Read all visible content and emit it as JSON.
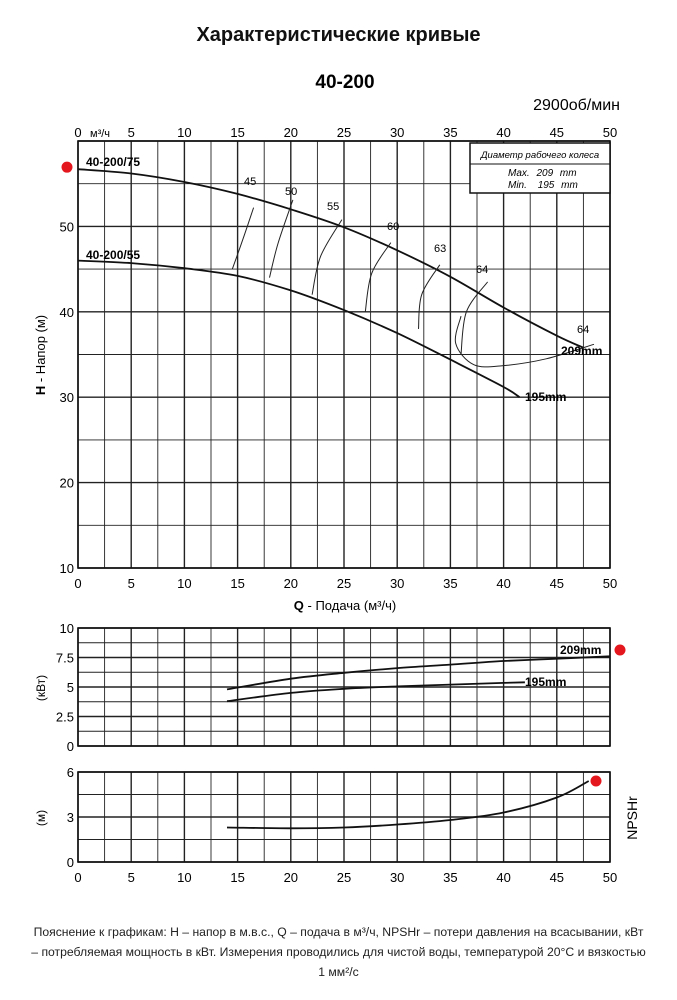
{
  "title": "Характеристические кривые",
  "model": "40-200",
  "speed_value": "2900",
  "speed_unit": "об/мин",
  "caption": "Пояснение к графикам: H – напор в м.в.с., Q – подача в м³/ч, NPSHr – потери давления на всасывании, кВт – потребляемая мощность в кВт. Измерения проводились для чистой воды, температурой 20°С и вязкостью 1 мм²/с",
  "impeller_box": {
    "header": "Диаметр рабочего колеса",
    "rows": [
      {
        "label": "Max.",
        "value": "209",
        "unit": "mm"
      },
      {
        "label": "Min.",
        "value": "195",
        "unit": "mm"
      }
    ]
  },
  "marker_color": "#e3171d",
  "chart_data": [
    {
      "type": "line",
      "panel": "head",
      "xlabel_prefix": "Q",
      "xlabel": "- Подача (м³/ч)",
      "top_unit": "м³/ч",
      "ylabel_prefix": "H",
      "ylabel": "- Напор (м)",
      "xlim": [
        0,
        50
      ],
      "ylim": [
        10,
        60
      ],
      "x_ticks": [
        0,
        5,
        10,
        15,
        20,
        25,
        30,
        35,
        40,
        45,
        50
      ],
      "y_ticks": [
        10,
        20,
        30,
        40,
        50
      ],
      "grid": true,
      "series": [
        {
          "name": "40-200/75",
          "end_label": "209mm",
          "x": [
            0,
            5,
            10,
            15,
            20,
            25,
            30,
            35,
            40,
            45,
            47.5
          ],
          "y": [
            56.7,
            56.2,
            55.2,
            53.8,
            52.0,
            49.9,
            47.2,
            44.1,
            40.5,
            37.2,
            35.8
          ]
        },
        {
          "name": "40-200/55",
          "end_label": "195mm",
          "x": [
            0,
            5,
            10,
            15,
            20,
            25,
            30,
            35,
            40,
            41.5
          ],
          "y": [
            46.0,
            45.7,
            45.1,
            44.2,
            42.5,
            40.2,
            37.5,
            34.4,
            31.2,
            30.0
          ]
        }
      ],
      "efficiency_labels": [
        "45",
        "50",
        "55",
        "60",
        "63",
        "64",
        "64"
      ],
      "efficiency_lines": [
        {
          "label": "45",
          "points": [
            [
              14.5,
              45
            ],
            [
              15.5,
              48.5
            ],
            [
              16.5,
              52.2
            ]
          ]
        },
        {
          "label": "50",
          "points": [
            [
              18,
              44
            ],
            [
              18.8,
              48
            ],
            [
              20.2,
              53.1
            ]
          ]
        },
        {
          "label": "55",
          "points": [
            [
              22,
              42
            ],
            [
              22.8,
              46.5
            ],
            [
              24.8,
              50.8
            ]
          ]
        },
        {
          "label": "60",
          "points": [
            [
              27,
              40
            ],
            [
              27.6,
              44.5
            ],
            [
              29.4,
              48.1
            ]
          ]
        },
        {
          "label": "63",
          "points": [
            [
              32,
              38
            ],
            [
              32.3,
              42
            ],
            [
              34,
              45.5
            ]
          ]
        },
        {
          "label": "64",
          "points": [
            [
              36,
              35
            ],
            [
              36.5,
              40
            ],
            [
              38.5,
              43.5
            ]
          ]
        }
      ],
      "efficiency_loop_64": [
        [
          48.5,
          36.2
        ],
        [
          44,
          34.5
        ],
        [
          40,
          33.7
        ],
        [
          37.2,
          33.8
        ],
        [
          35.5,
          36.3
        ],
        [
          36,
          39.5
        ]
      ]
    },
    {
      "type": "line",
      "panel": "power",
      "ylabel": "(кВт)",
      "xlim": [
        0,
        50
      ],
      "ylim": [
        0,
        10
      ],
      "y_ticks": [
        0,
        2.5,
        5,
        7.5,
        10
      ],
      "y_tick_labels": [
        "0",
        "2.5",
        "5",
        "7.5",
        "10"
      ],
      "grid": true,
      "series": [
        {
          "name": "209mm",
          "x": [
            14,
            20,
            25,
            30,
            35,
            40,
            45,
            50
          ],
          "y": [
            4.8,
            5.7,
            6.2,
            6.6,
            6.9,
            7.2,
            7.4,
            7.6
          ]
        },
        {
          "name": "195mm",
          "x": [
            14,
            20,
            25,
            30,
            35,
            40,
            42
          ],
          "y": [
            3.8,
            4.5,
            4.85,
            5.05,
            5.2,
            5.35,
            5.4
          ]
        }
      ]
    },
    {
      "type": "line",
      "panel": "npsh",
      "ylabel": "(м)",
      "side_label": "NPSHr",
      "xlim": [
        0,
        50
      ],
      "ylim": [
        0,
        6
      ],
      "x_ticks": [
        0,
        5,
        10,
        15,
        20,
        25,
        30,
        35,
        40,
        45,
        50
      ],
      "y_ticks": [
        0,
        3,
        6
      ],
      "grid": true,
      "series": [
        {
          "name": "NPSHr",
          "x": [
            14,
            20,
            25,
            30,
            35,
            40,
            45,
            48
          ],
          "y": [
            2.3,
            2.25,
            2.3,
            2.5,
            2.8,
            3.3,
            4.3,
            5.4
          ]
        }
      ]
    }
  ]
}
